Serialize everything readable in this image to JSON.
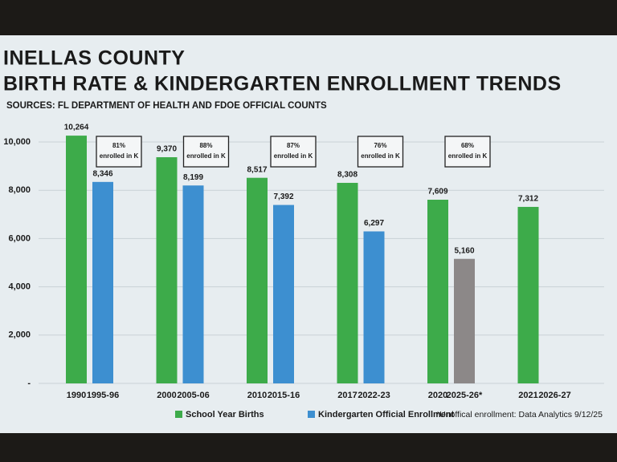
{
  "chart_data": {
    "type": "bar",
    "title": "INELLAS COUNTY",
    "subtitle": "BIRTH RATE & KINDERGARTEN ENROLLMENT TRENDS",
    "source": "SOURCES: FL DEPARTMENT OF HEALTH AND FDOE OFFICIAL COUNTS",
    "footnote": "*Unoffical enrollment: Data Analytics 9/12/25",
    "categories": [
      "1990",
      "1995-96",
      "2000",
      "2005-06",
      "2010",
      "2015-16",
      "2017",
      "2022-23",
      "2020",
      "2025-26*",
      "2021",
      "2026-27"
    ],
    "series": [
      {
        "name": "School Year Births",
        "color": "#3dab4a",
        "values": [
          10264,
          null,
          9370,
          null,
          8517,
          null,
          8308,
          null,
          7609,
          null,
          7312,
          null
        ],
        "value_labels": [
          "10,264",
          null,
          "9,370",
          null,
          "8,517",
          null,
          "8,308",
          null,
          "7,609",
          null,
          "7,312",
          null
        ]
      },
      {
        "name": "Kindergarten Official Enrollment",
        "color": "#3d8fd0",
        "colors": [
          "#3d8fd0",
          "#3d8fd0",
          "#3d8fd0",
          "#3d8fd0",
          "#3d8fd0",
          "#3d8fd0",
          "#3d8fd0",
          "#3d8fd0",
          "#3d8fd0",
          "#8c8888",
          "#3d8fd0",
          "#3d8fd0"
        ],
        "values": [
          null,
          8346,
          null,
          8199,
          null,
          7392,
          null,
          6297,
          null,
          5160,
          null,
          null
        ],
        "value_labels": [
          null,
          "8,346",
          null,
          "8,199",
          null,
          "7,392",
          null,
          "6,297",
          null,
          "5,160",
          null,
          null
        ]
      }
    ],
    "annotations": [
      {
        "percent": "81%",
        "text": "enrolled in K"
      },
      {
        "percent": "88%",
        "text": "enrolled in K"
      },
      {
        "percent": "87%",
        "text": "enrolled in K"
      },
      {
        "percent": "76%",
        "text": "enrolled in K"
      },
      {
        "percent": "68%",
        "text": "enrolled in K"
      }
    ],
    "ylim": [
      0,
      10500
    ],
    "yticks": [
      {
        "value": 0,
        "label": "-"
      },
      {
        "value": 2000,
        "label": "2,000"
      },
      {
        "value": 4000,
        "label": "4,000"
      },
      {
        "value": 6000,
        "label": "6,000"
      },
      {
        "value": 8000,
        "label": "8,000"
      },
      {
        "value": 10000,
        "label": "10,000"
      }
    ],
    "grid": true,
    "legend": "bottom"
  }
}
